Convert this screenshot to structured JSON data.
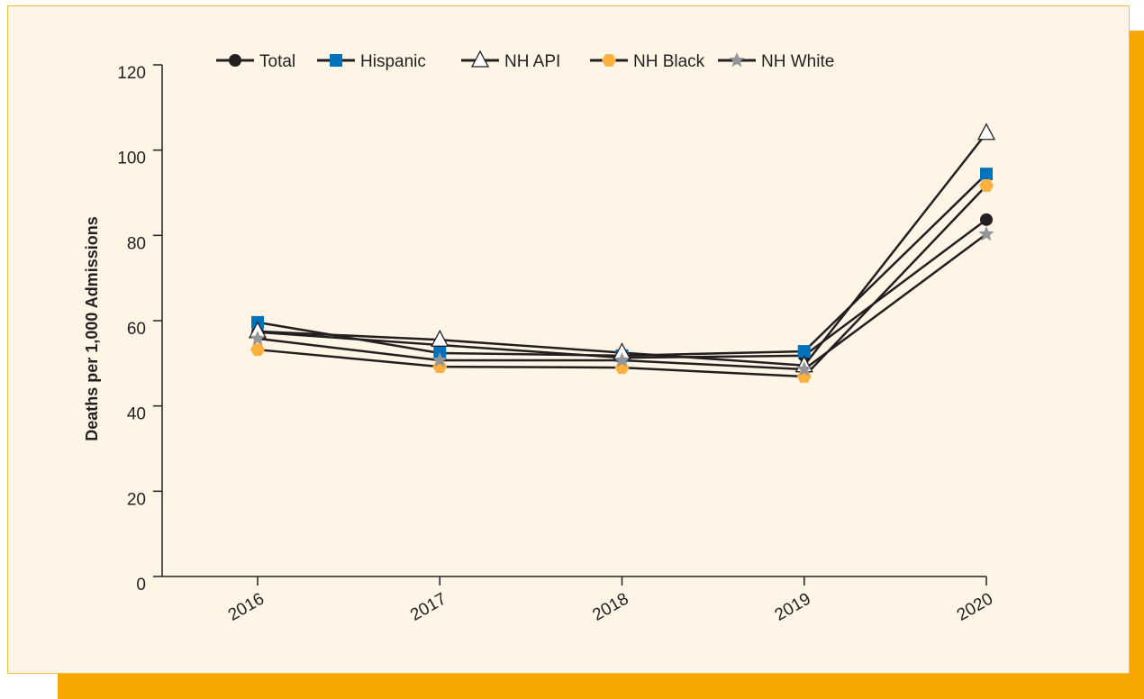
{
  "chart_data": {
    "type": "line",
    "y_label": "Deaths per 1,000 Admissions",
    "categories": [
      "2016",
      "2017",
      "2018",
      "2019",
      "2020"
    ],
    "line_color": "#231f20",
    "series": [
      {
        "name": "Total",
        "color": "#231f20",
        "marker": "circle",
        "values": [
          57.3,
          54.3,
          51.3,
          51.8,
          83.7
        ]
      },
      {
        "name": "Hispanic",
        "color": "#0072bc",
        "marker": "square",
        "values": [
          59.6,
          52.4,
          51.8,
          52.8,
          94.4
        ]
      },
      {
        "name": "NH API",
        "color": "#ffffff",
        "marker": "triangle",
        "values": [
          57.5,
          55.5,
          52.5,
          49.5,
          104
        ]
      },
      {
        "name": "NH Black",
        "color": "#fbb040",
        "marker": "hexagon",
        "values": [
          53.2,
          49.2,
          49,
          46.9,
          91.7
        ]
      },
      {
        "name": "NH White",
        "color": "#939598",
        "marker": "star",
        "values": [
          55.8,
          50.7,
          50.7,
          48.6,
          80.3
        ]
      }
    ],
    "ylim": [
      0,
      120
    ],
    "yticks": [
      0,
      20,
      40,
      60,
      80,
      100,
      120
    ],
    "grid": false
  }
}
